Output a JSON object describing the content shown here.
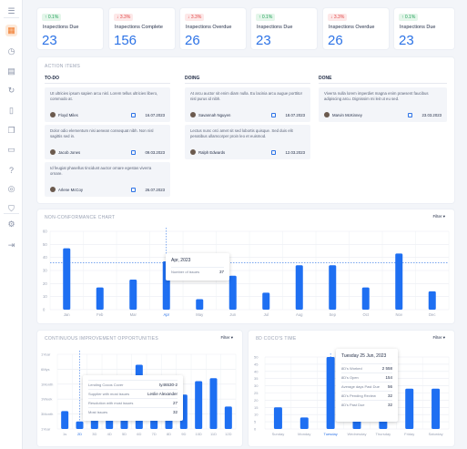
{
  "sidebar": {
    "icons": [
      "menu-icon",
      "grid-icon",
      "clock-icon",
      "archive-icon",
      "refresh-icon",
      "document-icon",
      "copy-icon",
      "folder-icon",
      "help-icon",
      "target-icon",
      "shield-icon",
      "settings-icon",
      "logout-icon"
    ]
  },
  "kpis": [
    {
      "badge": "0.1%",
      "trend": "up",
      "label": "Inspections Due",
      "value": "23"
    },
    {
      "badge": "3.3%",
      "trend": "down",
      "label": "Inspections Complete",
      "value": "156"
    },
    {
      "badge": "3.3%",
      "trend": "down",
      "label": "Inspections Overdue",
      "value": "26"
    },
    {
      "badge": "0.1%",
      "trend": "up",
      "label": "Inspections Due",
      "value": "23"
    },
    {
      "badge": "3.3%",
      "trend": "down",
      "label": "Inspections Overdue",
      "value": "26"
    },
    {
      "badge": "0.1%",
      "trend": "up",
      "label": "Inspections Due",
      "value": "23"
    }
  ],
  "action_items": {
    "title": "ACTION ITEMS",
    "columns": [
      {
        "title": "TO-DO",
        "items": [
          {
            "text": "Ut ultricies ipsum sapien arcu nisl. Lorem tellus ultricies libero, commodo at.",
            "user": "Floyd Miles",
            "date": "16.07.2023"
          },
          {
            "text": "Dolor odio elementum nisi aenean consequat nibh. Non nisl sagittis sed in.",
            "user": "Jacob Jones",
            "date": "09.03.2023"
          },
          {
            "text": "Id feugiat phasellus tincidunt auctor ornare egestas viverra ornare.",
            "user": "Arlene McCoy",
            "date": "26.07.2023"
          }
        ]
      },
      {
        "title": "DOING",
        "items": [
          {
            "text": "At arcu auctor sit enim diam nulla. Eu lacinia arcu augue porttitor nisl purus id nibh.",
            "user": "Savannah Nguyen",
            "date": "18.07.2023"
          },
          {
            "text": "Lectus nunc orci amet sit sed lobortis quisque. Sed duis elit penatibus ullamcorper proin leo et euismod.",
            "user": "Ralph Edwards",
            "date": "12.03.2023"
          }
        ]
      },
      {
        "title": "DONE",
        "items": [
          {
            "text": "Viverra nulla lorem imperdiet magna enim praesent faucibus adipiscing arcu. Dignissim mi leit ut eu sed.",
            "user": "Marvin McKinney",
            "date": "23.03.2023"
          }
        ]
      }
    ]
  },
  "nc_chart": {
    "title": "NON-CONFORMANCE CHART",
    "filter": "Filter",
    "tooltip": {
      "title": "Apr, 2023",
      "row_label": "Number of issues",
      "row_value": "37"
    }
  },
  "ci_chart": {
    "title": "CONTINUOUS IMPROVEMENT OPPORTUNITIES",
    "filter": "Filter",
    "tooltip": [
      {
        "label": "Lending Cocos Cover",
        "value": "ty46530-2"
      },
      {
        "label": "Supplier with most issues",
        "value": "Leslie Alexander"
      },
      {
        "label": "Resolution with most issues",
        "value": "27"
      },
      {
        "label": "Most issues",
        "value": "32"
      }
    ]
  },
  "bd_chart": {
    "title": "8D COCO'S TIME",
    "filter": "Filter",
    "tooltip_title": "Tuesday 25 Jun, 2023",
    "tooltip": [
      {
        "label": "8D's Worked",
        "value": "2 558"
      },
      {
        "label": "8D's Open",
        "value": "154"
      },
      {
        "label": "Average days Past Due",
        "value": "56"
      },
      {
        "label": "8D's Pending Review",
        "value": "32"
      },
      {
        "label": "8D's Past Due",
        "value": "32"
      }
    ]
  },
  "chart_data": [
    {
      "type": "bar",
      "title": "NON-CONFORMANCE CHART",
      "categories": [
        "Jan",
        "Feb",
        "Mar",
        "Apr",
        "May",
        "Jun",
        "Jul",
        "Aug",
        "Sep",
        "Oct",
        "Nov",
        "Dec"
      ],
      "values": [
        47,
        17,
        23,
        37,
        8,
        26,
        13,
        34,
        34,
        17,
        43,
        14
      ],
      "yticks": [
        "0",
        "10",
        "20",
        "30",
        "40",
        "50",
        "60"
      ],
      "ylim": [
        0,
        60
      ],
      "average": 36,
      "highlight": "Apr",
      "color": "#1e6ff2"
    },
    {
      "type": "bar",
      "title": "CONTINUOUS IMPROVEMENT OPPORTUNITIES",
      "categories": [
        "1s",
        "2D",
        "3D",
        "4D",
        "5D",
        "6D",
        "7D",
        "8D",
        "9D",
        "10D",
        "11D",
        "12D"
      ],
      "values": [
        1.2,
        0.5,
        1.6,
        1.2,
        1.4,
        4.3,
        2.5,
        1.5,
        2.3,
        3.2,
        3.4,
        1.5
      ],
      "yticks": [
        "1Year",
        "3Month",
        "1Week",
        "1Month",
        "6Mys",
        "1Year"
      ],
      "ylim": [
        0,
        5
      ],
      "highlight": "2D",
      "color": "#1e6ff2"
    },
    {
      "type": "bar",
      "title": "8D COCO'S TIME",
      "categories": [
        "Sunday",
        "Monday",
        "Tuesday",
        "Wednesday",
        "Thursday",
        "Friday",
        "Saturday"
      ],
      "values": [
        15,
        8,
        50,
        18,
        25,
        28,
        28
      ],
      "yticks": [
        "0",
        "5",
        "10",
        "15",
        "20",
        "25",
        "30",
        "35",
        "40",
        "45",
        "50"
      ],
      "ylim": [
        0,
        50
      ],
      "highlight": "Tuesday",
      "color": "#1e6ff2"
    }
  ]
}
